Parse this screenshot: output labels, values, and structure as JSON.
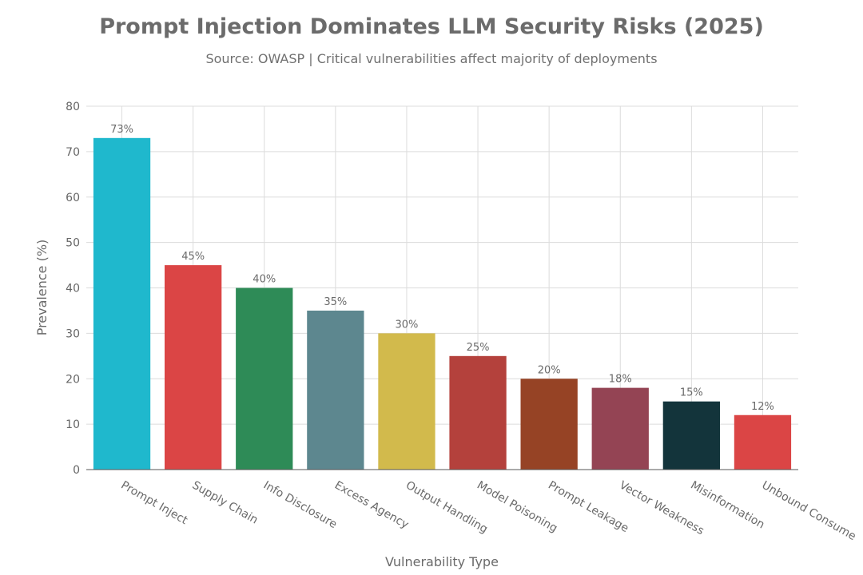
{
  "chart_data": {
    "type": "bar",
    "title": "Prompt Injection Dominates LLM Security Risks (2025)",
    "subtitle": "Source: OWASP | Critical vulnerabilities affect majority of deployments",
    "xlabel": "Vulnerability Type",
    "ylabel": "Prevalence (%)",
    "categories": [
      "Prompt Inject",
      "Supply Chain",
      "Info Disclosure",
      "Excess Agency",
      "Output Handling",
      "Model Poisoning",
      "Prompt Leakage",
      "Vector Weakness",
      "Misinformation",
      "Unbound Consume"
    ],
    "values": [
      73,
      45,
      40,
      35,
      30,
      25,
      20,
      18,
      15,
      12
    ],
    "data_labels": [
      "73%",
      "45%",
      "40%",
      "35%",
      "30%",
      "25%",
      "20%",
      "18%",
      "15%",
      "12%"
    ],
    "colors": [
      "#1fb8cd",
      "#db4545",
      "#2e8b57",
      "#5d878f",
      "#d2ba4c",
      "#b4413c",
      "#964325",
      "#944454",
      "#13343b",
      "#db4545"
    ],
    "ylim": [
      0,
      80
    ],
    "yticks": [
      0,
      10,
      20,
      30,
      40,
      50,
      60,
      70,
      80
    ],
    "grid": true,
    "legend": "none"
  }
}
